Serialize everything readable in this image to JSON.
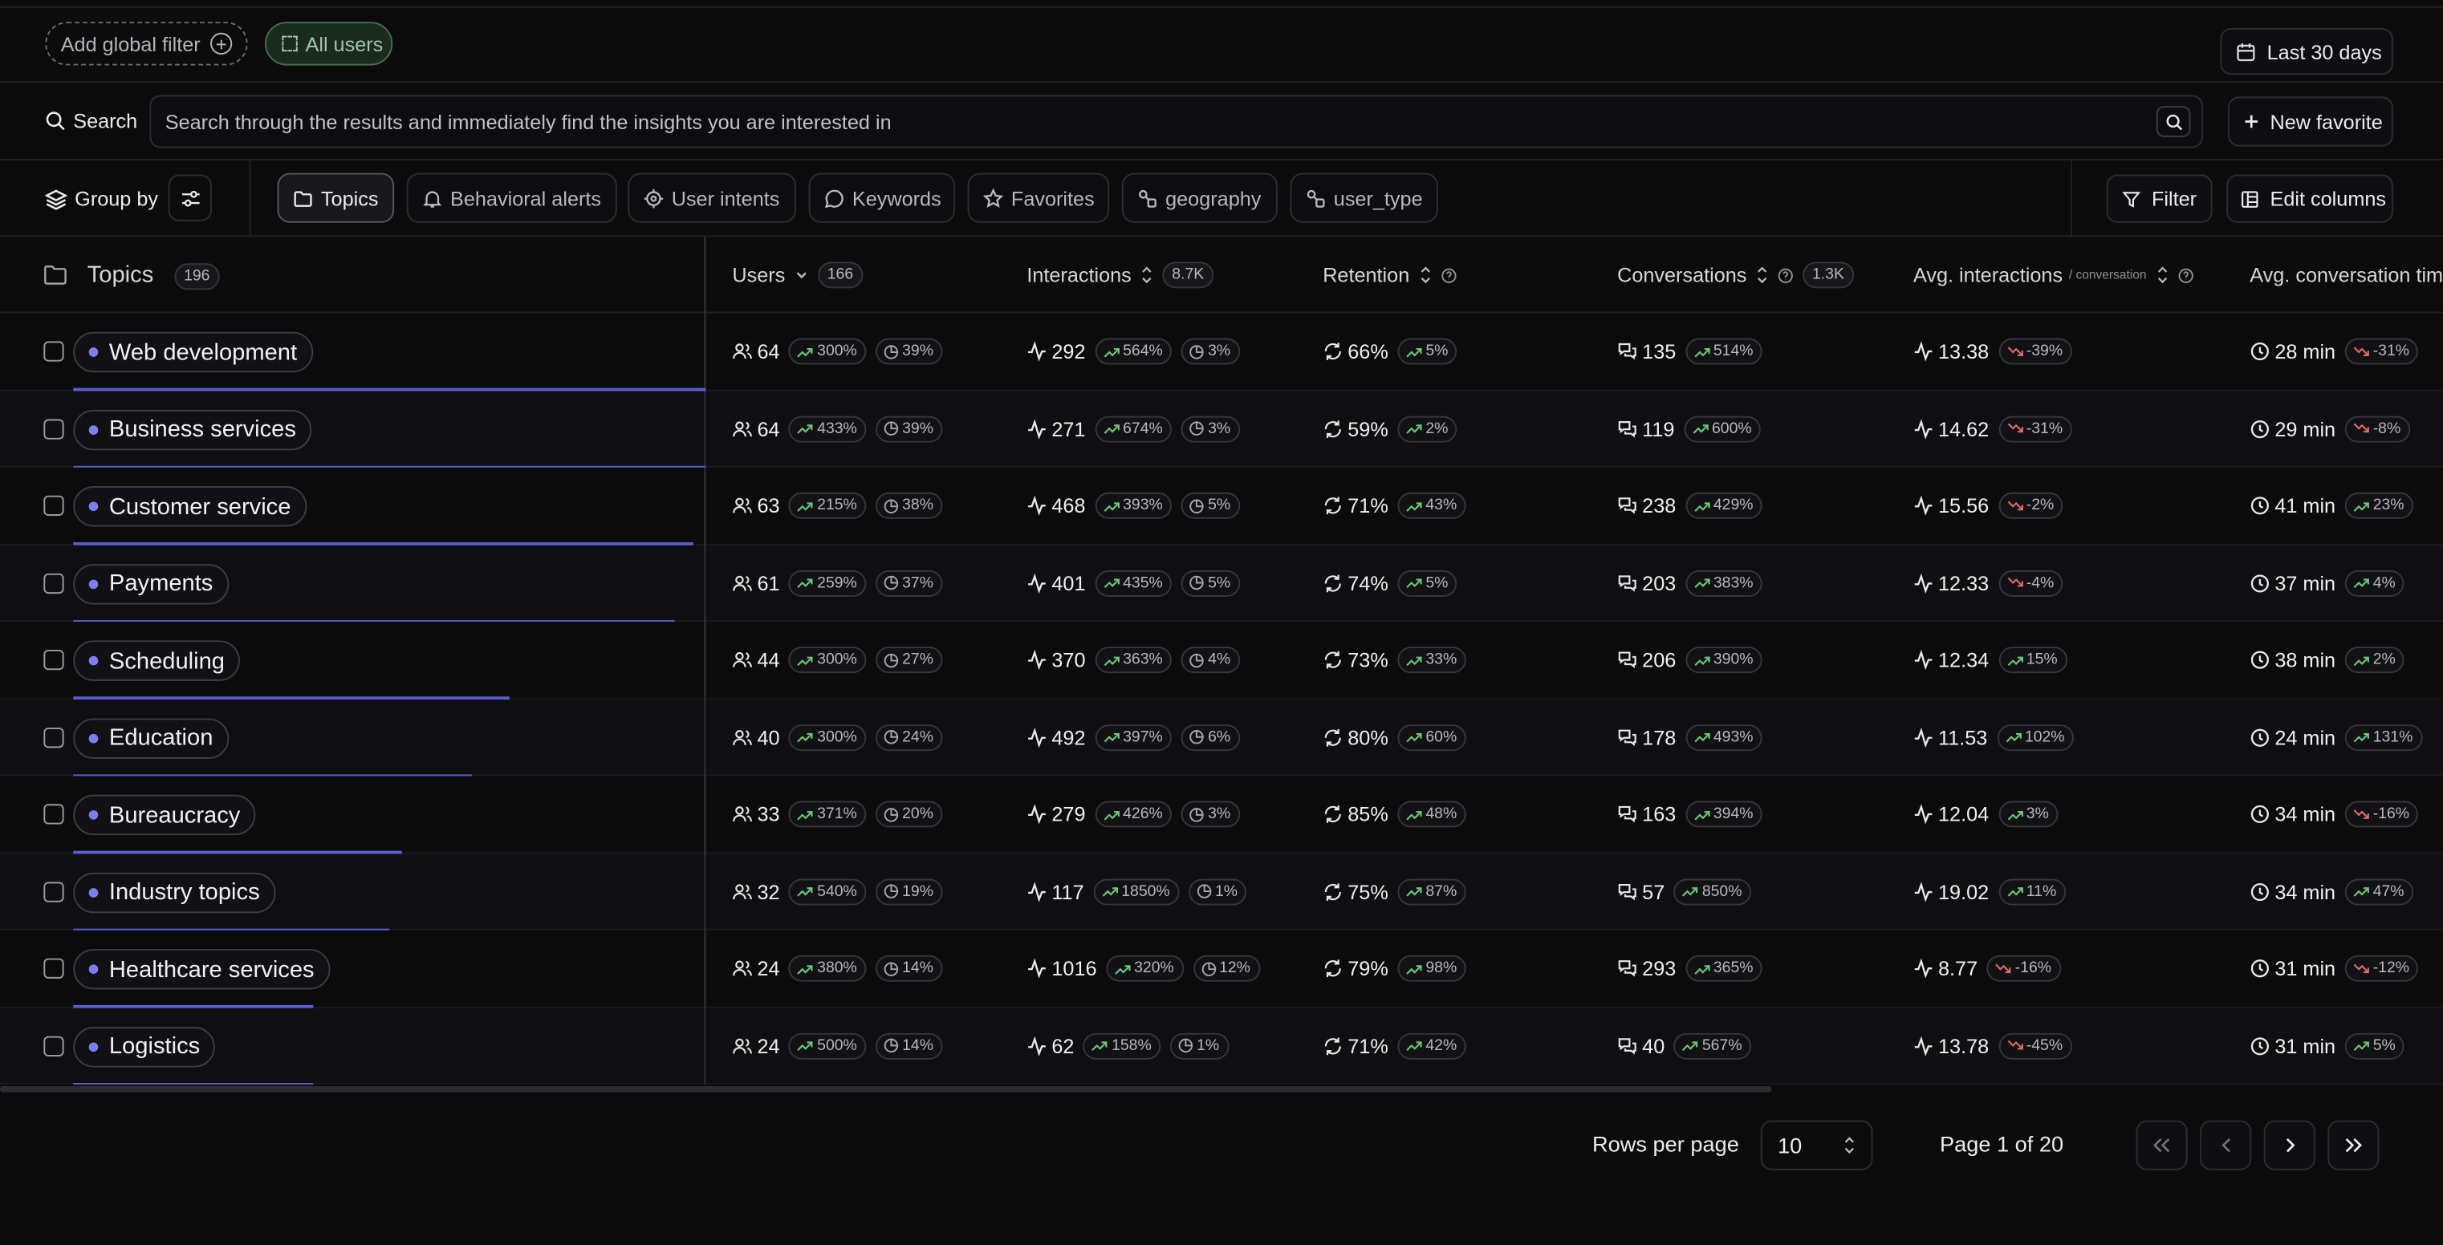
{
  "filters": {
    "add_global_filter": "Add global filter",
    "all_users": "All users",
    "date_range": "Last 30 days"
  },
  "search": {
    "label": "Search",
    "placeholder": "Search through the results and immediately find the insights you are interested in",
    "new_favorite": "New favorite"
  },
  "toolbar": {
    "group_by": "Group by",
    "tabs": [
      {
        "label": "Topics",
        "icon": "folder-icon",
        "active": true
      },
      {
        "label": "Behavioral alerts",
        "icon": "bell-icon",
        "active": false
      },
      {
        "label": "User intents",
        "icon": "target-icon",
        "active": false
      },
      {
        "label": "Keywords",
        "icon": "message-icon",
        "active": false
      },
      {
        "label": "Favorites",
        "icon": "star-icon",
        "active": false
      },
      {
        "label": "geography",
        "icon": "link-icon",
        "active": false
      },
      {
        "label": "user_type",
        "icon": "link-icon",
        "active": false
      }
    ],
    "filter": "Filter",
    "edit_columns": "Edit columns"
  },
  "table": {
    "topics_header": "Topics",
    "topics_count": "196",
    "columns": {
      "users": "Users",
      "users_count": "166",
      "interactions": "Interactions",
      "interactions_count": "8.7K",
      "retention": "Retention",
      "conversations": "Conversations",
      "conversations_count": "1.3K",
      "avg_interactions": "Avg. interactions",
      "avg_interactions_sub": "/ conversation",
      "avg_conv_time": "Avg. conversation time"
    },
    "rows": [
      {
        "topic": "Web development",
        "share": 1.0,
        "users": "64",
        "users_change": "300%",
        "users_share": "39%",
        "interactions": "292",
        "int_change": "564%",
        "int_share": "3%",
        "retention": "66%",
        "ret_change": "5%",
        "conversations": "135",
        "conv_change": "514%",
        "avg_int": "13.38",
        "avg_int_change": "-39%",
        "avg_int_dir": "down",
        "avg_time": "28 min",
        "time_change": "-31%",
        "time_dir": "down"
      },
      {
        "topic": "Business services",
        "share": 1.0,
        "users": "64",
        "users_change": "433%",
        "users_share": "39%",
        "interactions": "271",
        "int_change": "674%",
        "int_share": "3%",
        "retention": "59%",
        "ret_change": "2%",
        "conversations": "119",
        "conv_change": "600%",
        "avg_int": "14.62",
        "avg_int_change": "-31%",
        "avg_int_dir": "down",
        "avg_time": "29 min",
        "time_change": "-8%",
        "time_dir": "down"
      },
      {
        "topic": "Customer service",
        "share": 0.98,
        "users": "63",
        "users_change": "215%",
        "users_share": "38%",
        "interactions": "468",
        "int_change": "393%",
        "int_share": "5%",
        "retention": "71%",
        "ret_change": "43%",
        "conversations": "238",
        "conv_change": "429%",
        "avg_int": "15.56",
        "avg_int_change": "-2%",
        "avg_int_dir": "down",
        "avg_time": "41 min",
        "time_change": "23%",
        "time_dir": "up"
      },
      {
        "topic": "Payments",
        "share": 0.95,
        "users": "61",
        "users_change": "259%",
        "users_share": "37%",
        "interactions": "401",
        "int_change": "435%",
        "int_share": "5%",
        "retention": "74%",
        "ret_change": "5%",
        "conversations": "203",
        "conv_change": "383%",
        "avg_int": "12.33",
        "avg_int_change": "-4%",
        "avg_int_dir": "down",
        "avg_time": "37 min",
        "time_change": "4%",
        "time_dir": "up"
      },
      {
        "topic": "Scheduling",
        "share": 0.69,
        "users": "44",
        "users_change": "300%",
        "users_share": "27%",
        "interactions": "370",
        "int_change": "363%",
        "int_share": "4%",
        "retention": "73%",
        "ret_change": "33%",
        "conversations": "206",
        "conv_change": "390%",
        "avg_int": "12.34",
        "avg_int_change": "15%",
        "avg_int_dir": "up",
        "avg_time": "38 min",
        "time_change": "2%",
        "time_dir": "up"
      },
      {
        "topic": "Education",
        "share": 0.63,
        "users": "40",
        "users_change": "300%",
        "users_share": "24%",
        "interactions": "492",
        "int_change": "397%",
        "int_share": "6%",
        "retention": "80%",
        "ret_change": "60%",
        "conversations": "178",
        "conv_change": "493%",
        "avg_int": "11.53",
        "avg_int_change": "102%",
        "avg_int_dir": "up",
        "avg_time": "24 min",
        "time_change": "131%",
        "time_dir": "up"
      },
      {
        "topic": "Bureaucracy",
        "share": 0.52,
        "users": "33",
        "users_change": "371%",
        "users_share": "20%",
        "interactions": "279",
        "int_change": "426%",
        "int_share": "3%",
        "retention": "85%",
        "ret_change": "48%",
        "conversations": "163",
        "conv_change": "394%",
        "avg_int": "12.04",
        "avg_int_change": "3%",
        "avg_int_dir": "up",
        "avg_time": "34 min",
        "time_change": "-16%",
        "time_dir": "down"
      },
      {
        "topic": "Industry topics",
        "share": 0.5,
        "users": "32",
        "users_change": "540%",
        "users_share": "19%",
        "interactions": "117",
        "int_change": "1850%",
        "int_share": "1%",
        "retention": "75%",
        "ret_change": "87%",
        "conversations": "57",
        "conv_change": "850%",
        "avg_int": "19.02",
        "avg_int_change": "11%",
        "avg_int_dir": "up",
        "avg_time": "34 min",
        "time_change": "47%",
        "time_dir": "up"
      },
      {
        "topic": "Healthcare services",
        "share": 0.38,
        "users": "24",
        "users_change": "380%",
        "users_share": "14%",
        "interactions": "1016",
        "int_change": "320%",
        "int_share": "12%",
        "retention": "79%",
        "ret_change": "98%",
        "conversations": "293",
        "conv_change": "365%",
        "avg_int": "8.77",
        "avg_int_change": "-16%",
        "avg_int_dir": "down",
        "avg_time": "31 min",
        "time_change": "-12%",
        "time_dir": "down"
      },
      {
        "topic": "Logistics",
        "share": 0.38,
        "users": "24",
        "users_change": "500%",
        "users_share": "14%",
        "interactions": "62",
        "int_change": "158%",
        "int_share": "1%",
        "retention": "71%",
        "ret_change": "42%",
        "conversations": "40",
        "conv_change": "567%",
        "avg_int": "13.78",
        "avg_int_change": "-45%",
        "avg_int_dir": "down",
        "avg_time": "31 min",
        "time_change": "5%",
        "time_dir": "up"
      }
    ]
  },
  "pagination": {
    "rows_per_page_label": "Rows per page",
    "rows_per_page": "10",
    "page_label": "Page 1 of 20"
  },
  "colors": {
    "accent": "#7c7ff2",
    "up": "#6cc77a",
    "down": "#e06a6a",
    "bar": "#5a5cd0"
  }
}
